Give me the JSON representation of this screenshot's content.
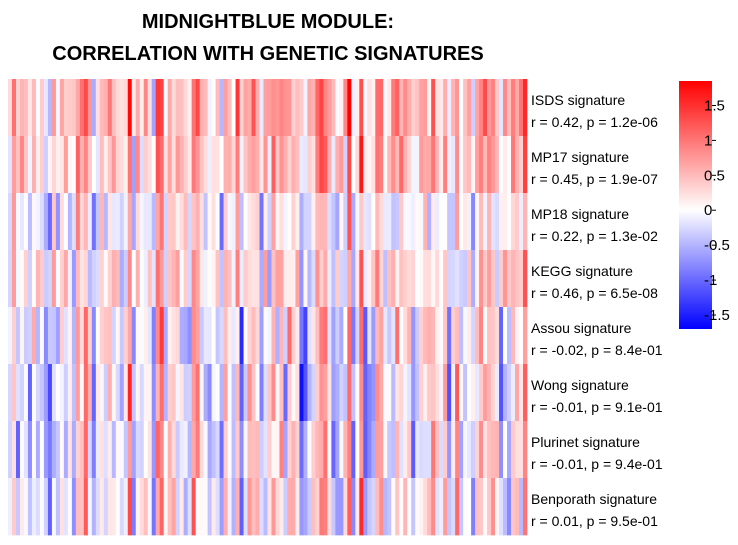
{
  "chart_data": {
    "type": "heatmap",
    "title_lines": [
      "MIDNIGHTBLUE MODULE:",
      "CORRELATION WITH GENETIC SIGNATURES"
    ],
    "rows": [
      {
        "name": "ISDS signature",
        "stat": "r = 0.42, p = 1.2e-06"
      },
      {
        "name": "MP17 signature",
        "stat": "r = 0.45, p = 1.9e-07"
      },
      {
        "name": "MP18 signature",
        "stat": "r = 0.22, p = 1.3e-02"
      },
      {
        "name": "KEGG signature",
        "stat": "r = 0.46, p = 6.5e-08"
      },
      {
        "name": "Assou signature",
        "stat": "r = -0.02, p = 8.4e-01"
      },
      {
        "name": "Wong signature",
        "stat": "r = -0.01, p = 9.1e-01"
      },
      {
        "name": "Plurinet signature",
        "stat": "r = -0.01, p = 9.4e-01"
      },
      {
        "name": "Benporath signature",
        "stat": "r = 0.01, p = 9.5e-01"
      }
    ],
    "n_columns": 130,
    "color_scale": {
      "low": "#0000ff",
      "mid": "#ffffff",
      "high": "#ff0000",
      "range": [
        -1.7,
        1.85
      ]
    },
    "colorbar_ticks": [
      {
        "value": 1.5,
        "label": "1.5"
      },
      {
        "value": 1,
        "label": "1"
      },
      {
        "value": 0.5,
        "label": "0.5"
      },
      {
        "value": 0,
        "label": "0"
      },
      {
        "value": -0.5,
        "label": "-0.5"
      },
      {
        "value": -1,
        "label": "-1"
      },
      {
        "value": -1.5,
        "label": "-1.5"
      }
    ]
  }
}
